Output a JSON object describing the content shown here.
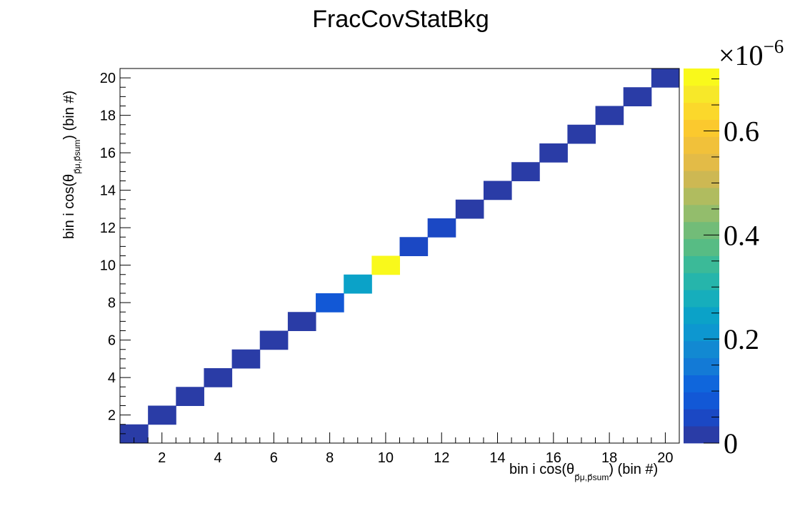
{
  "chart_data": {
    "type": "heatmap",
    "title": "FracCovStatBkg",
    "xlabel": {
      "main": "bin i cos(θ",
      "sub": "p⃗μ,p⃗sum",
      "tail": ") (bin #)"
    },
    "ylabel": {
      "main": "bin i cos(θ",
      "sub": "p⃗μ,p⃗sum",
      "tail": ") (bin #)"
    },
    "x_range": [
      0.5,
      20.5
    ],
    "y_range": [
      0.5,
      20.5
    ],
    "x_ticks": [
      2,
      4,
      6,
      8,
      10,
      12,
      14,
      16,
      18,
      20
    ],
    "y_ticks": [
      2,
      4,
      6,
      8,
      10,
      12,
      14,
      16,
      18,
      20
    ],
    "color_scale": {
      "min": 0,
      "max": 7.2e-07,
      "exponent_label": "×10",
      "exponent_power": "−6",
      "ticks": [
        {
          "value": 0,
          "label": "0"
        },
        {
          "value": 2e-07,
          "label": "0.2"
        },
        {
          "value": 4e-07,
          "label": "0.4"
        },
        {
          "value": 6e-07,
          "label": "0.6"
        }
      ],
      "palette": [
        "#2a3ca6",
        "#1b48c4",
        "#1258d6",
        "#0f66dc",
        "#137ad6",
        "#1289d2",
        "#0d97d0",
        "#0ba2c8",
        "#16aebc",
        "#26b5ab",
        "#3bba98",
        "#57bc84",
        "#72bc78",
        "#93bd6c",
        "#b0bc5f",
        "#cdb853",
        "#e3bb47",
        "#f1c13a",
        "#fbc92e",
        "#fbd82b",
        "#f7e829",
        "#f9f91b"
      ]
    },
    "cells": [
      {
        "x": 1,
        "y": 1,
        "value": 1e-08
      },
      {
        "x": 2,
        "y": 2,
        "value": 1e-08
      },
      {
        "x": 3,
        "y": 3,
        "value": 1e-08
      },
      {
        "x": 4,
        "y": 4,
        "value": 1e-08
      },
      {
        "x": 5,
        "y": 5,
        "value": 1e-08
      },
      {
        "x": 6,
        "y": 6,
        "value": 1e-08
      },
      {
        "x": 7,
        "y": 7,
        "value": 1e-08
      },
      {
        "x": 8,
        "y": 8,
        "value": 9e-08
      },
      {
        "x": 9,
        "y": 9,
        "value": 2.4e-07
      },
      {
        "x": 10,
        "y": 10,
        "value": 7.2e-07
      },
      {
        "x": 11,
        "y": 11,
        "value": 4e-08
      },
      {
        "x": 12,
        "y": 12,
        "value": 4e-08
      },
      {
        "x": 13,
        "y": 13,
        "value": 1e-08
      },
      {
        "x": 14,
        "y": 14,
        "value": 1e-08
      },
      {
        "x": 15,
        "y": 15,
        "value": 1e-08
      },
      {
        "x": 16,
        "y": 16,
        "value": 1e-08
      },
      {
        "x": 17,
        "y": 17,
        "value": 1e-08
      },
      {
        "x": 18,
        "y": 18,
        "value": 1e-08
      },
      {
        "x": 19,
        "y": 19,
        "value": 1e-08
      },
      {
        "x": 20,
        "y": 20,
        "value": 1e-08
      }
    ]
  }
}
